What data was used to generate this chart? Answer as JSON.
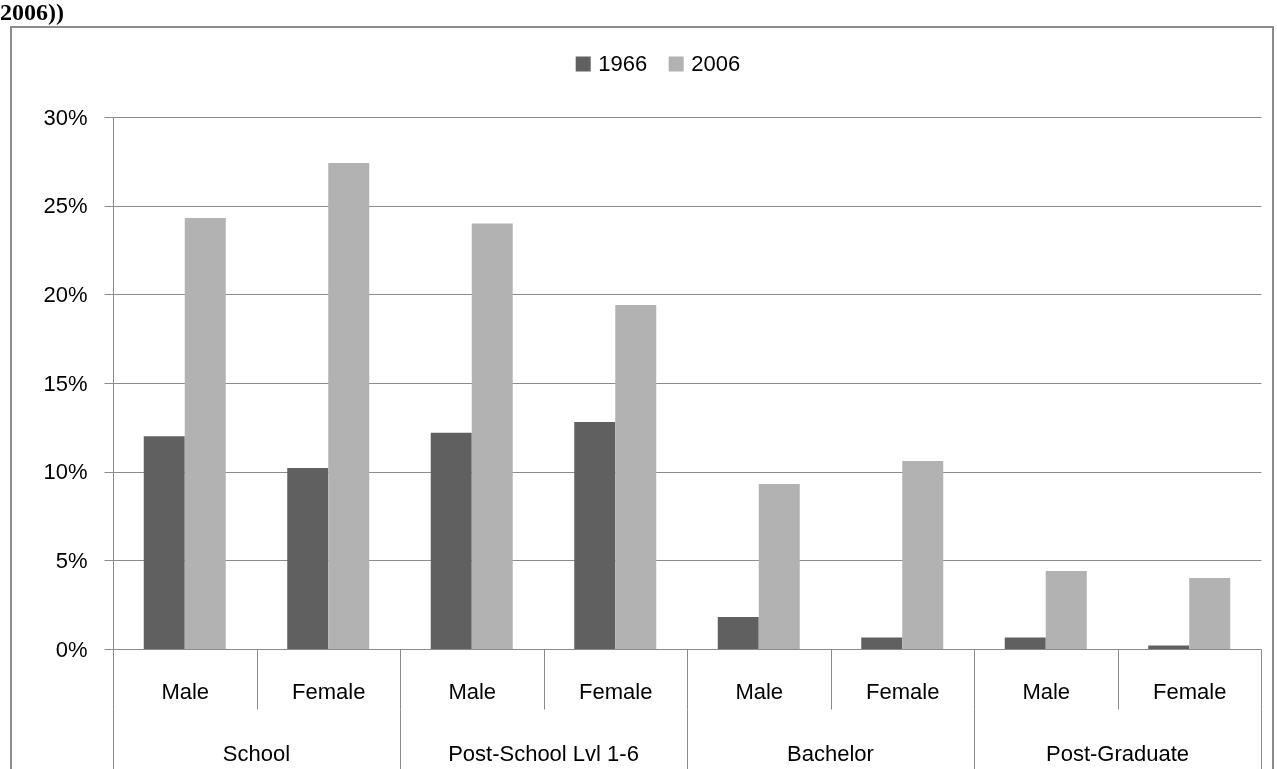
{
  "chart_data": {
    "type": "bar",
    "title": "2006))",
    "categories": [
      "Male",
      "Female",
      "Male",
      "Female",
      "Male",
      "Female",
      "Male",
      "Female"
    ],
    "series": [
      {
        "name": "1966",
        "color": "#606060",
        "values": [
          12.0,
          10.2,
          12.2,
          12.8,
          1.8,
          0.65,
          0.65,
          0.2
        ]
      },
      {
        "name": "2006",
        "color": "#b2b2b2",
        "values": [
          24.3,
          27.4,
          24.0,
          19.4,
          9.3,
          10.6,
          4.4,
          4.0
        ]
      }
    ],
    "ylim": [
      0,
      30
    ],
    "yticks": [
      {
        "value": 0,
        "label": "0%"
      },
      {
        "value": 5,
        "label": "5%"
      },
      {
        "value": 10,
        "label": "10%"
      },
      {
        "value": 15,
        "label": "15%"
      },
      {
        "value": 20,
        "label": "20%"
      },
      {
        "value": 25,
        "label": "25%"
      },
      {
        "value": 30,
        "label": "30%"
      }
    ],
    "grid": "y",
    "legend": "top",
    "annotations": [
      "School",
      "Post-School Lvl 1-6",
      "Bachelor",
      "Post-Graduate"
    ]
  }
}
